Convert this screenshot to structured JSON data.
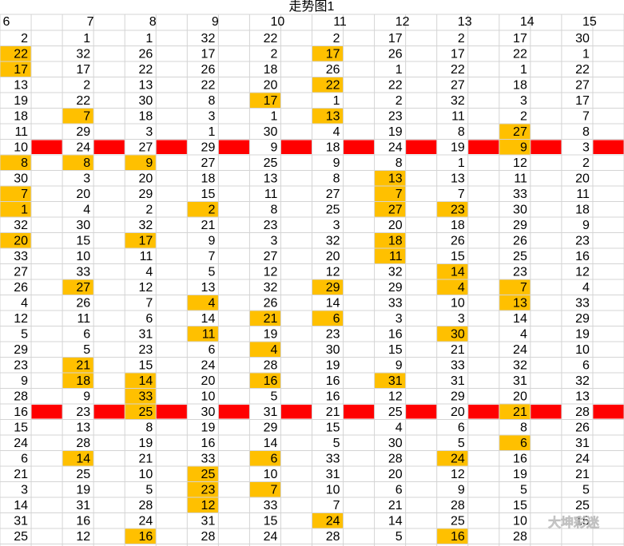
{
  "title": "走势图1",
  "headers": [
    6,
    7,
    8,
    9,
    10,
    11,
    12,
    13,
    14,
    15
  ],
  "rows": [
    [
      2,
      1,
      1,
      32,
      22,
      2,
      17,
      2,
      17,
      30
    ],
    [
      22,
      32,
      26,
      17,
      2,
      17,
      26,
      17,
      22,
      1
    ],
    [
      17,
      17,
      22,
      26,
      18,
      26,
      1,
      22,
      1,
      22
    ],
    [
      13,
      2,
      13,
      22,
      20,
      22,
      22,
      27,
      18,
      27
    ],
    [
      19,
      22,
      30,
      8,
      17,
      1,
      2,
      32,
      3,
      17
    ],
    [
      18,
      7,
      18,
      3,
      1,
      13,
      23,
      11,
      2,
      7
    ],
    [
      11,
      29,
      3,
      1,
      30,
      4,
      19,
      8,
      27,
      8
    ],
    [
      10,
      24,
      27,
      29,
      9,
      18,
      24,
      19,
      9,
      3
    ],
    [
      8,
      8,
      9,
      27,
      25,
      9,
      8,
      1,
      12,
      2
    ],
    [
      30,
      3,
      20,
      18,
      13,
      8,
      13,
      13,
      11,
      20
    ],
    [
      7,
      20,
      29,
      15,
      11,
      27,
      7,
      7,
      33,
      11
    ],
    [
      1,
      4,
      2,
      2,
      8,
      25,
      27,
      23,
      30,
      18
    ],
    [
      32,
      30,
      32,
      21,
      23,
      3,
      20,
      18,
      29,
      9
    ],
    [
      20,
      15,
      17,
      9,
      3,
      32,
      18,
      26,
      26,
      23
    ],
    [
      33,
      10,
      11,
      7,
      27,
      20,
      11,
      15,
      25,
      16
    ],
    [
      27,
      33,
      4,
      5,
      12,
      12,
      32,
      14,
      23,
      12
    ],
    [
      26,
      27,
      12,
      13,
      32,
      29,
      29,
      4,
      7,
      4
    ],
    [
      4,
      26,
      7,
      4,
      26,
      14,
      33,
      10,
      13,
      33
    ],
    [
      12,
      11,
      6,
      14,
      21,
      6,
      3,
      3,
      14,
      29
    ],
    [
      5,
      6,
      31,
      11,
      19,
      23,
      16,
      30,
      4,
      19
    ],
    [
      29,
      5,
      23,
      6,
      4,
      30,
      15,
      21,
      24,
      10
    ],
    [
      23,
      21,
      15,
      24,
      28,
      19,
      9,
      33,
      32,
      6
    ],
    [
      9,
      18,
      14,
      20,
      16,
      16,
      31,
      31,
      31,
      32
    ],
    [
      28,
      9,
      33,
      10,
      5,
      16,
      12,
      29,
      20,
      13
    ],
    [
      16,
      23,
      25,
      30,
      31,
      21,
      25,
      20,
      21,
      28
    ],
    [
      15,
      13,
      8,
      19,
      29,
      15,
      4,
      6,
      8,
      26
    ],
    [
      24,
      28,
      19,
      16,
      14,
      5,
      30,
      5,
      6,
      31
    ],
    [
      6,
      14,
      21,
      33,
      6,
      33,
      28,
      24,
      16,
      24
    ],
    [
      21,
      25,
      10,
      25,
      10,
      31,
      20,
      12,
      19,
      21
    ],
    [
      3,
      19,
      5,
      23,
      7,
      10,
      6,
      9,
      5,
      5
    ],
    [
      14,
      31,
      28,
      12,
      33,
      7,
      21,
      28,
      15,
      25
    ],
    [
      31,
      16,
      24,
      31,
      15,
      24,
      14,
      25,
      10,
      15
    ],
    [
      25,
      12,
      16,
      28,
      24,
      28,
      5,
      16,
      28,
      null
    ]
  ],
  "highlight_cols": [
    [],
    [
      0,
      5
    ],
    [
      0
    ],
    [
      5
    ],
    [
      4
    ],
    [
      1,
      5
    ],
    [
      8
    ],
    [
      8
    ],
    [
      0,
      1,
      2
    ],
    [
      6
    ],
    [
      0,
      6
    ],
    [
      0,
      3,
      6,
      7
    ],
    [],
    [
      0,
      2,
      6
    ],
    [
      6
    ],
    [
      7
    ],
    [
      1,
      5,
      7,
      8
    ],
    [
      3,
      8
    ],
    [
      4,
      5
    ],
    [
      3,
      7
    ],
    [
      4
    ],
    [
      1
    ],
    [
      1,
      2,
      4,
      6
    ],
    [
      2
    ],
    [
      2,
      8
    ],
    [],
    [
      8
    ],
    [
      1,
      4,
      7
    ],
    [
      3
    ],
    [
      3,
      4
    ],
    [
      3
    ],
    [
      5
    ],
    [
      2,
      7
    ]
  ],
  "red_rows": [
    7,
    24
  ],
  "watermark": "大坤彩迷"
}
